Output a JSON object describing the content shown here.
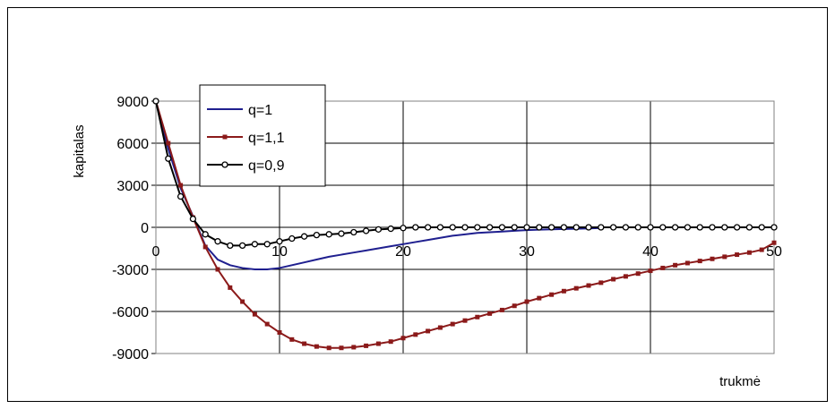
{
  "chart_data": {
    "type": "line",
    "title": "",
    "xlabel": "trukmė",
    "ylabel": "kapitalas",
    "xlim": [
      0,
      50
    ],
    "ylim": [
      -9000,
      9000
    ],
    "x_ticks": [
      0,
      10,
      20,
      30,
      40,
      50
    ],
    "y_ticks": [
      9000,
      6000,
      3000,
      0,
      -3000,
      -6000,
      -9000
    ],
    "x_tick_labels": [
      "0",
      "10",
      "20",
      "30",
      "40",
      "50"
    ],
    "y_tick_labels": [
      "9000",
      "6000",
      "3000",
      "0",
      "-3000",
      "-6000",
      "-9000"
    ],
    "grid": true,
    "legend_position": "top-left",
    "series": [
      {
        "name": "q=1",
        "color": "#1f1f8f",
        "marker": "none",
        "x": [
          0,
          1,
          2,
          3,
          4,
          5,
          6,
          7,
          8,
          9,
          10,
          11,
          12,
          13,
          14,
          15,
          16,
          17,
          18,
          19,
          20,
          21,
          22,
          23,
          24,
          25,
          26,
          27,
          28,
          29,
          30,
          31,
          32,
          33,
          34,
          35,
          36
        ],
        "y": [
          9000,
          5600,
          2800,
          800,
          -1300,
          -2300,
          -2700,
          -2900,
          -3000,
          -3000,
          -2900,
          -2700,
          -2500,
          -2300,
          -2100,
          -1950,
          -1800,
          -1650,
          -1500,
          -1350,
          -1200,
          -1050,
          -900,
          -750,
          -600,
          -500,
          -400,
          -350,
          -300,
          -250,
          -200,
          -170,
          -140,
          -120,
          -100,
          -80,
          -50
        ]
      },
      {
        "name": "q=1,1",
        "color": "#8b1a1a",
        "marker": "square",
        "x": [
          0,
          1,
          2,
          3,
          4,
          5,
          6,
          7,
          8,
          9,
          10,
          11,
          12,
          13,
          14,
          15,
          16,
          17,
          18,
          19,
          20,
          21,
          22,
          23,
          24,
          25,
          26,
          27,
          28,
          29,
          30,
          31,
          32,
          33,
          34,
          35,
          36,
          37,
          38,
          39,
          40,
          41,
          42,
          43,
          44,
          45,
          46,
          47,
          48,
          49,
          50
        ],
        "y": [
          9000,
          6000,
          3000,
          700,
          -1400,
          -3000,
          -4300,
          -5300,
          -6200,
          -6900,
          -7500,
          -8000,
          -8300,
          -8500,
          -8600,
          -8600,
          -8550,
          -8450,
          -8300,
          -8150,
          -7900,
          -7650,
          -7400,
          -7150,
          -6900,
          -6650,
          -6400,
          -6150,
          -5900,
          -5600,
          -5300,
          -5050,
          -4800,
          -4550,
          -4350,
          -4150,
          -3950,
          -3700,
          -3500,
          -3300,
          -3100,
          -2900,
          -2700,
          -2550,
          -2400,
          -2250,
          -2100,
          -1950,
          -1800,
          -1600,
          -1100
        ]
      },
      {
        "name": "q=0,9",
        "color": "#000000",
        "marker": "circle",
        "x": [
          0,
          1,
          2,
          3,
          4,
          5,
          6,
          7,
          8,
          9,
          10,
          11,
          12,
          13,
          14,
          15,
          16,
          17,
          18,
          19,
          20,
          21,
          22,
          23,
          24,
          25,
          26,
          27,
          28,
          29,
          30,
          31,
          32,
          33,
          34,
          35,
          36,
          37,
          38,
          39,
          40,
          41,
          42,
          43,
          44,
          45,
          46,
          47,
          48,
          49,
          50
        ],
        "y": [
          9000,
          4900,
          2200,
          600,
          -500,
          -1000,
          -1300,
          -1300,
          -1200,
          -1200,
          -1000,
          -800,
          -650,
          -550,
          -500,
          -450,
          -350,
          -250,
          -150,
          -100,
          -50,
          0,
          0,
          0,
          0,
          0,
          0,
          0,
          0,
          0,
          0,
          0,
          0,
          0,
          0,
          0,
          0,
          0,
          0,
          0,
          0,
          0,
          0,
          0,
          0,
          0,
          0,
          0,
          0,
          0,
          0
        ]
      }
    ]
  }
}
